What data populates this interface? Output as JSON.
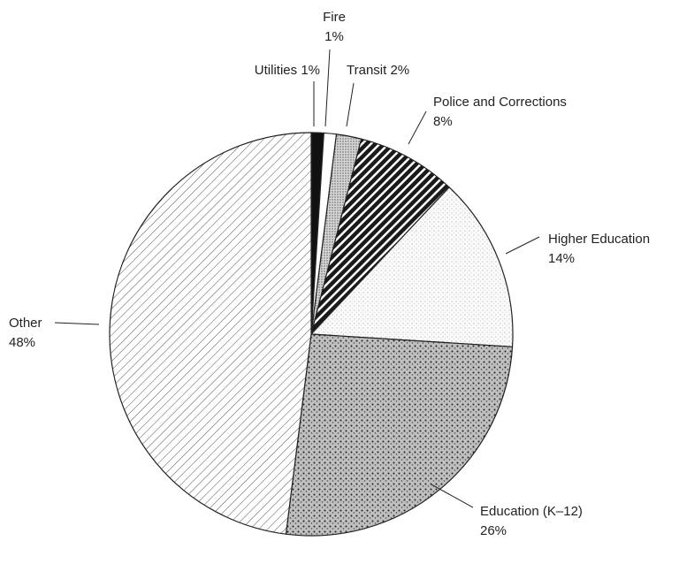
{
  "chart_data": {
    "type": "pie",
    "categories": [
      "Utilities",
      "Fire",
      "Transit",
      "Police and Corrections",
      "Higher Education",
      "Education (K–12)",
      "Other"
    ],
    "values": [
      1,
      1,
      2,
      8,
      14,
      26,
      48
    ],
    "value_labels": [
      "1%",
      "1%",
      "2%",
      "8%",
      "14%",
      "26%",
      "48%"
    ]
  }
}
